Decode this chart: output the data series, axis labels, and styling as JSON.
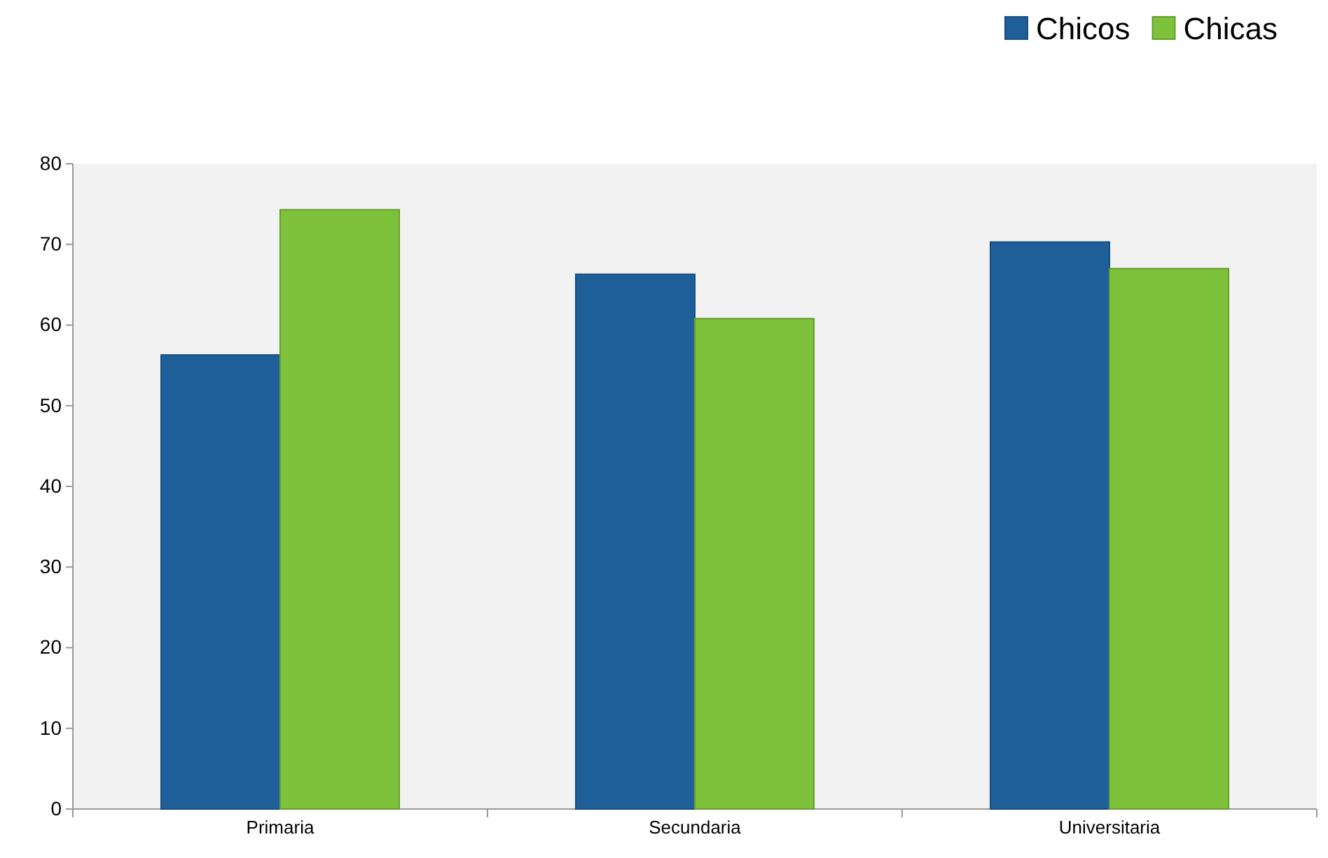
{
  "chart_data": {
    "type": "bar",
    "categories": [
      "Primaria",
      "Secundaria",
      "Universitaria"
    ],
    "series": [
      {
        "name": "Chicos",
        "color": "#1f5f99",
        "values": [
          56.3,
          66.3,
          70.3
        ]
      },
      {
        "name": "Chicas",
        "color": "#7dc23a",
        "values": [
          74.3,
          60.8,
          67
        ]
      }
    ],
    "ylim": [
      0,
      80
    ],
    "yticks": [
      0,
      10,
      20,
      30,
      40,
      50,
      60,
      70,
      80
    ],
    "grid": false,
    "legend": "top right"
  }
}
